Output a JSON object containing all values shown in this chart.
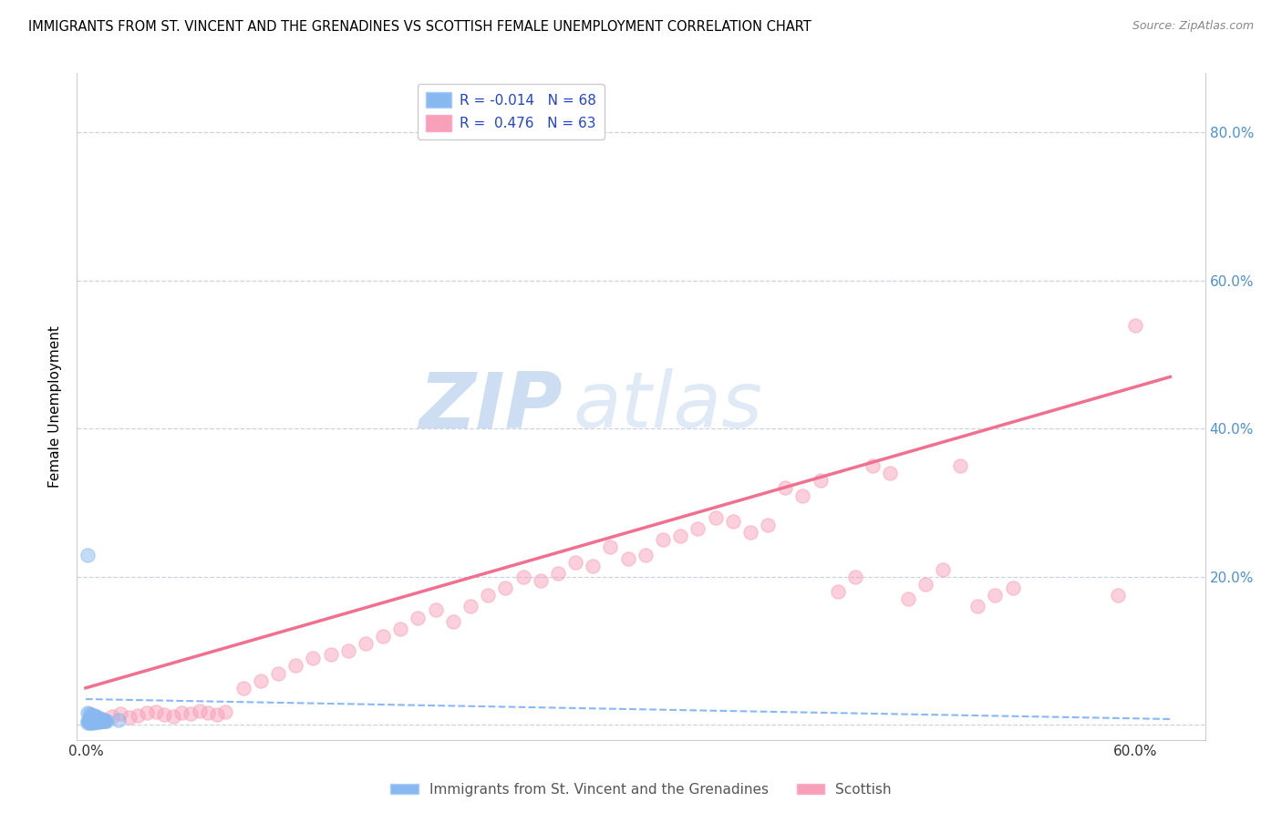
{
  "title": "IMMIGRANTS FROM ST. VINCENT AND THE GRENADINES VS SCOTTISH FEMALE UNEMPLOYMENT CORRELATION CHART",
  "source": "Source: ZipAtlas.com",
  "ylabel": "Female Unemployment",
  "y_ticks": [
    0.0,
    0.2,
    0.4,
    0.6,
    0.8
  ],
  "y_tick_labels": [
    "",
    "20.0%",
    "40.0%",
    "60.0%",
    "80.0%"
  ],
  "x_ticks": [
    0.0,
    0.1,
    0.2,
    0.3,
    0.4,
    0.5,
    0.6
  ],
  "x_tick_labels_show": [
    "0.0%",
    "60.0%"
  ],
  "xlim": [
    -0.005,
    0.64
  ],
  "ylim": [
    -0.02,
    0.88
  ],
  "watermark_zip": "ZIP",
  "watermark_atlas": "atlas",
  "blue_scatter_x": [
    0.001,
    0.001,
    0.002,
    0.002,
    0.002,
    0.002,
    0.002,
    0.003,
    0.003,
    0.003,
    0.003,
    0.003,
    0.003,
    0.003,
    0.004,
    0.004,
    0.004,
    0.004,
    0.004,
    0.004,
    0.004,
    0.005,
    0.005,
    0.005,
    0.005,
    0.005,
    0.005,
    0.006,
    0.006,
    0.006,
    0.006,
    0.006,
    0.006,
    0.007,
    0.007,
    0.007,
    0.007,
    0.007,
    0.008,
    0.008,
    0.008,
    0.009,
    0.009,
    0.009,
    0.01,
    0.01,
    0.01,
    0.011,
    0.011,
    0.012,
    0.001,
    0.002,
    0.003,
    0.003,
    0.004,
    0.004,
    0.005,
    0.005,
    0.006,
    0.006,
    0.007,
    0.007,
    0.008,
    0.008,
    0.009,
    0.01,
    0.019,
    0.001
  ],
  "blue_scatter_y": [
    0.005,
    0.003,
    0.004,
    0.006,
    0.005,
    0.003,
    0.007,
    0.004,
    0.006,
    0.005,
    0.008,
    0.003,
    0.007,
    0.006,
    0.005,
    0.004,
    0.007,
    0.006,
    0.008,
    0.005,
    0.003,
    0.006,
    0.005,
    0.007,
    0.004,
    0.008,
    0.006,
    0.005,
    0.007,
    0.006,
    0.004,
    0.008,
    0.005,
    0.006,
    0.007,
    0.005,
    0.004,
    0.006,
    0.005,
    0.007,
    0.004,
    0.006,
    0.005,
    0.007,
    0.006,
    0.005,
    0.007,
    0.005,
    0.006,
    0.005,
    0.016,
    0.015,
    0.014,
    0.013,
    0.012,
    0.011,
    0.013,
    0.012,
    0.011,
    0.01,
    0.01,
    0.009,
    0.009,
    0.008,
    0.008,
    0.007,
    0.007,
    0.23
  ],
  "pink_scatter_x": [
    0.005,
    0.01,
    0.015,
    0.02,
    0.025,
    0.03,
    0.035,
    0.04,
    0.045,
    0.05,
    0.055,
    0.06,
    0.065,
    0.07,
    0.075,
    0.08,
    0.09,
    0.1,
    0.11,
    0.12,
    0.13,
    0.14,
    0.15,
    0.16,
    0.17,
    0.18,
    0.19,
    0.2,
    0.21,
    0.22,
    0.23,
    0.24,
    0.25,
    0.26,
    0.27,
    0.28,
    0.29,
    0.3,
    0.31,
    0.32,
    0.33,
    0.34,
    0.35,
    0.36,
    0.37,
    0.38,
    0.39,
    0.4,
    0.41,
    0.42,
    0.43,
    0.44,
    0.45,
    0.46,
    0.47,
    0.48,
    0.49,
    0.5,
    0.51,
    0.52,
    0.53,
    0.59,
    0.6
  ],
  "pink_scatter_y": [
    0.01,
    0.008,
    0.012,
    0.015,
    0.01,
    0.013,
    0.016,
    0.018,
    0.014,
    0.012,
    0.017,
    0.015,
    0.019,
    0.016,
    0.014,
    0.018,
    0.05,
    0.06,
    0.07,
    0.08,
    0.09,
    0.095,
    0.1,
    0.11,
    0.12,
    0.13,
    0.145,
    0.155,
    0.14,
    0.16,
    0.175,
    0.185,
    0.2,
    0.195,
    0.205,
    0.22,
    0.215,
    0.24,
    0.225,
    0.23,
    0.25,
    0.255,
    0.265,
    0.28,
    0.275,
    0.26,
    0.27,
    0.32,
    0.31,
    0.33,
    0.18,
    0.2,
    0.35,
    0.34,
    0.17,
    0.19,
    0.21,
    0.35,
    0.16,
    0.175,
    0.185,
    0.175,
    0.54
  ],
  "blue_line_x": [
    0.0,
    0.62
  ],
  "blue_line_y": [
    0.035,
    0.008
  ],
  "pink_line_x": [
    0.0,
    0.62
  ],
  "pink_line_y": [
    0.05,
    0.47
  ],
  "blue_dot_color": "#88b8f0",
  "pink_dot_color": "#f8a0b8",
  "blue_line_color": "#88b8f5",
  "pink_line_color": "#f07090",
  "grid_color": "#c8d4e8",
  "background_color": "#ffffff",
  "right_axis_color": "#5090d0",
  "legend_label_color": "#2244cc"
}
